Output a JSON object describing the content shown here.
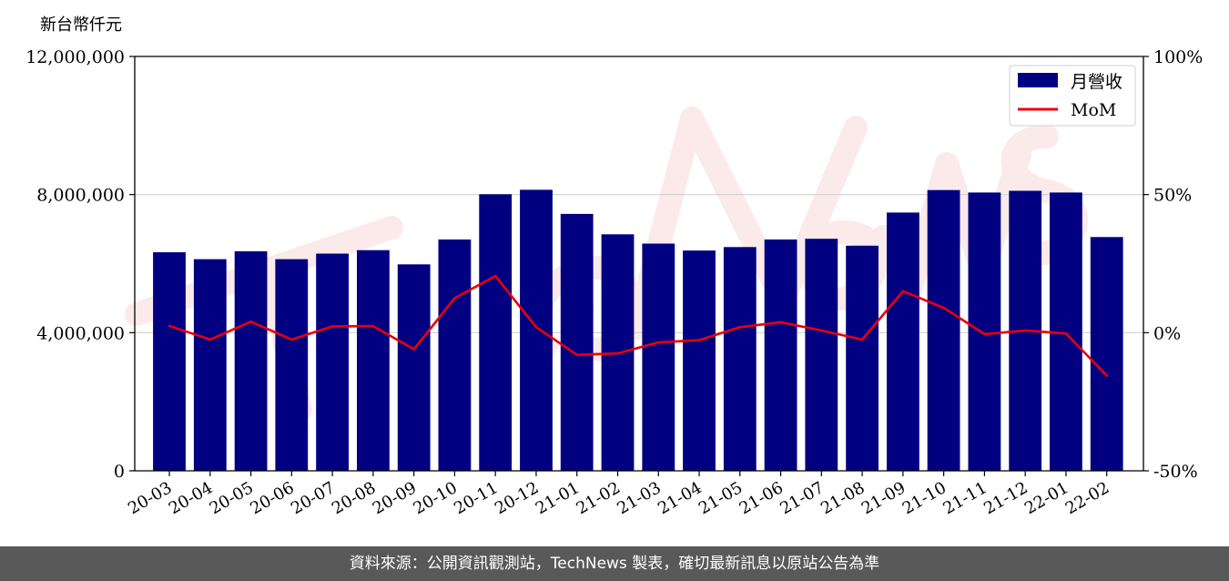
{
  "chart_data": {
    "type": "bar",
    "units_label": "新台幣仟元",
    "categories": [
      "20-03",
      "20-04",
      "20-05",
      "20-06",
      "20-07",
      "20-08",
      "20-09",
      "20-10",
      "20-11",
      "20-12",
      "21-01",
      "21-02",
      "21-03",
      "21-04",
      "21-05",
      "21-06",
      "21-07",
      "21-08",
      "21-09",
      "21-10",
      "21-11",
      "21-12",
      "22-01",
      "22-02"
    ],
    "series": [
      {
        "name": "月營收",
        "type": "bar",
        "axis": "left",
        "color": "#000080",
        "values": [
          6330000,
          6130000,
          6360000,
          6130000,
          6290000,
          6390000,
          5980000,
          6700000,
          8010000,
          8140000,
          7440000,
          6850000,
          6580000,
          6380000,
          6480000,
          6700000,
          6720000,
          6520000,
          7480000,
          8130000,
          8060000,
          8110000,
          8060000,
          6770000
        ]
      },
      {
        "name": "MoM",
        "type": "line",
        "axis": "right",
        "color": "#e8000b",
        "values": [
          2.5,
          -2.5,
          4.0,
          -2.5,
          2.3,
          2.4,
          -6.0,
          12.5,
          20.5,
          2.0,
          -8.0,
          -7.5,
          -3.5,
          -2.7,
          2.0,
          3.8,
          0.8,
          -2.5,
          15.0,
          9.0,
          -0.5,
          0.8,
          -0.3,
          -15.5
        ]
      }
    ],
    "ylim_left": [
      0,
      12000000
    ],
    "yticks_left": [
      "0",
      "4,000,000",
      "8,000,000",
      "12,000,000"
    ],
    "ylim_right": [
      -50,
      100
    ],
    "yticks_right": [
      "-50%",
      "0%",
      "50%",
      "100%"
    ],
    "grid": "horizontal",
    "legend": "top-right"
  },
  "footer": {
    "source_text": "資料來源：公開資訊觀測站，TechNews 製表，確切最新訊息以原站公告為準"
  }
}
